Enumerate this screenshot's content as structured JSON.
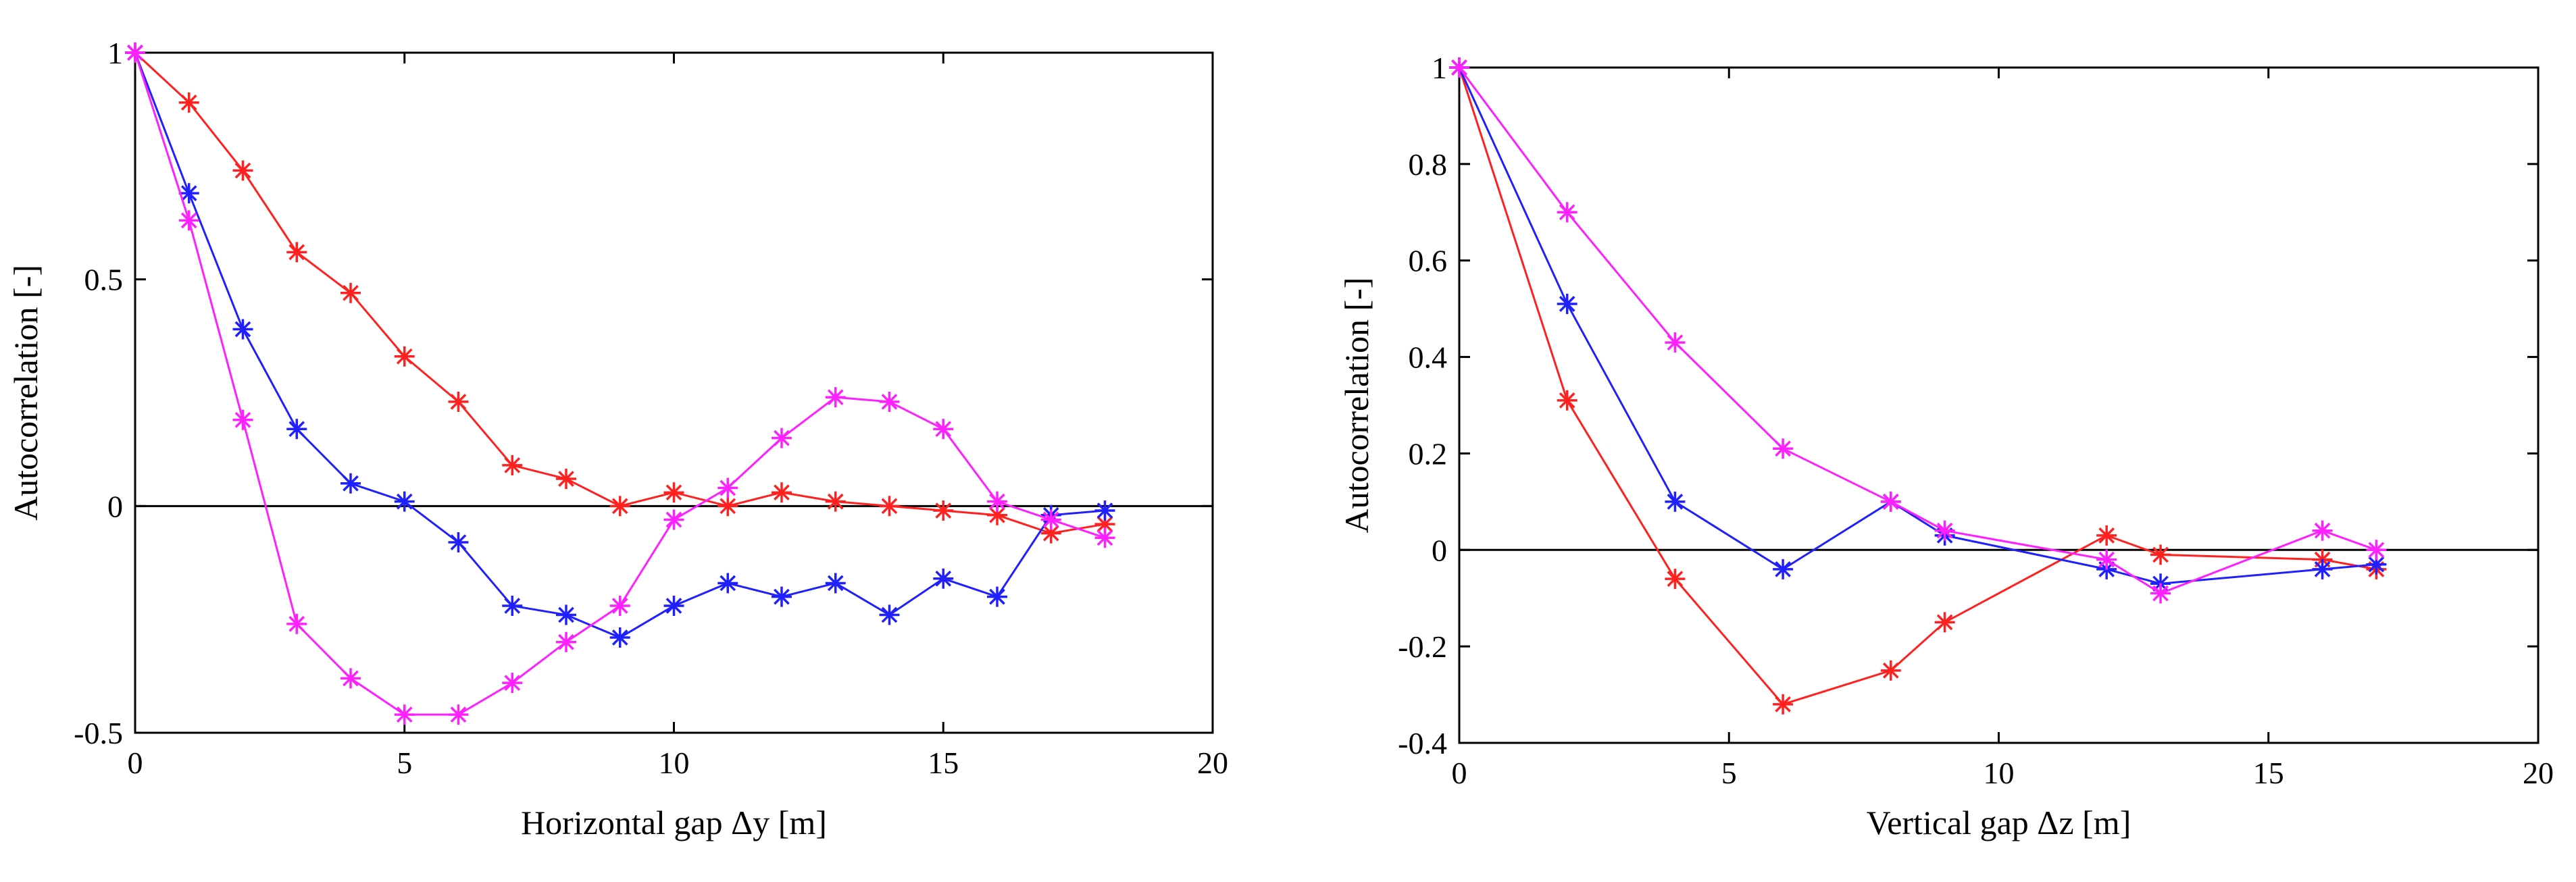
{
  "chart_data": [
    {
      "type": "line",
      "xlabel": "Horizontal gap Δy [m]",
      "ylabel": "Autocorrelation [-]",
      "xlim": [
        0,
        20
      ],
      "ylim": [
        -0.5,
        1
      ],
      "xticks": [
        0,
        5,
        10,
        15,
        20
      ],
      "yticks": [
        -0.5,
        0,
        0.5,
        1
      ],
      "ytick_labels": [
        "-0.5",
        "0",
        "0.5",
        "1"
      ],
      "zero_line": true,
      "grid": false,
      "series": [
        {
          "name": "red",
          "color": "#ff2020",
          "marker": "asterisk",
          "x": [
            0,
            1,
            2,
            3,
            4,
            5,
            6,
            7,
            8,
            9,
            10,
            11,
            12,
            13,
            14,
            15,
            16,
            17,
            18
          ],
          "y": [
            1,
            0.89,
            0.74,
            0.56,
            0.47,
            0.33,
            0.23,
            0.09,
            0.06,
            0.0,
            0.03,
            0.0,
            0.03,
            0.01,
            0.0,
            -0.01,
            -0.02,
            -0.06,
            -0.04
          ]
        },
        {
          "name": "blue",
          "color": "#2020ff",
          "marker": "asterisk",
          "x": [
            0,
            1,
            2,
            3,
            4,
            5,
            6,
            7,
            8,
            9,
            10,
            11,
            12,
            13,
            14,
            15,
            16,
            17,
            18
          ],
          "y": [
            1,
            0.69,
            0.39,
            0.17,
            0.05,
            0.01,
            -0.08,
            -0.22,
            -0.24,
            -0.29,
            -0.22,
            -0.17,
            -0.2,
            -0.17,
            -0.24,
            -0.16,
            -0.2,
            -0.02,
            -0.01
          ]
        },
        {
          "name": "magenta",
          "color": "#ff20ff",
          "marker": "asterisk",
          "x": [
            0,
            1,
            2,
            3,
            4,
            5,
            6,
            7,
            8,
            9,
            10,
            11,
            12,
            13,
            14,
            15,
            16,
            17,
            18
          ],
          "y": [
            1,
            0.63,
            0.19,
            -0.26,
            -0.38,
            -0.46,
            -0.46,
            -0.39,
            -0.3,
            -0.22,
            -0.03,
            0.04,
            0.15,
            0.24,
            0.23,
            0.17,
            0.01,
            -0.03,
            -0.07
          ]
        }
      ]
    },
    {
      "type": "line",
      "xlabel": "Vertical gap Δz [m]",
      "ylabel": "Autocorrelation [-]",
      "xlim": [
        0,
        20
      ],
      "ylim": [
        -0.4,
        1
      ],
      "xticks": [
        0,
        5,
        10,
        15,
        20
      ],
      "yticks": [
        -0.4,
        -0.2,
        0,
        0.2,
        0.4,
        0.6,
        0.8,
        1
      ],
      "ytick_labels": [
        "-0.4",
        "-0.2",
        "0",
        "0.2",
        "0.4",
        "0.6",
        "0.8",
        "1"
      ],
      "zero_line": true,
      "grid": false,
      "series": [
        {
          "name": "red",
          "color": "#ff2020",
          "marker": "asterisk",
          "x": [
            0,
            2,
            4,
            6,
            8,
            9,
            12,
            13,
            16,
            17
          ],
          "y": [
            1,
            0.31,
            -0.06,
            -0.32,
            -0.25,
            -0.15,
            0.03,
            -0.01,
            -0.02,
            -0.04
          ]
        },
        {
          "name": "blue",
          "color": "#2020ff",
          "marker": "asterisk",
          "x": [
            0,
            2,
            4,
            6,
            8,
            9,
            12,
            13,
            16,
            17
          ],
          "y": [
            1,
            0.51,
            0.1,
            -0.04,
            0.1,
            0.03,
            -0.04,
            -0.07,
            -0.04,
            -0.03
          ]
        },
        {
          "name": "magenta",
          "color": "#ff20ff",
          "marker": "asterisk",
          "x": [
            0,
            2,
            4,
            6,
            8,
            9,
            12,
            13,
            16,
            17
          ],
          "y": [
            1,
            0.7,
            0.43,
            0.21,
            0.1,
            0.04,
            -0.02,
            -0.09,
            0.04,
            0.0
          ]
        }
      ]
    }
  ]
}
